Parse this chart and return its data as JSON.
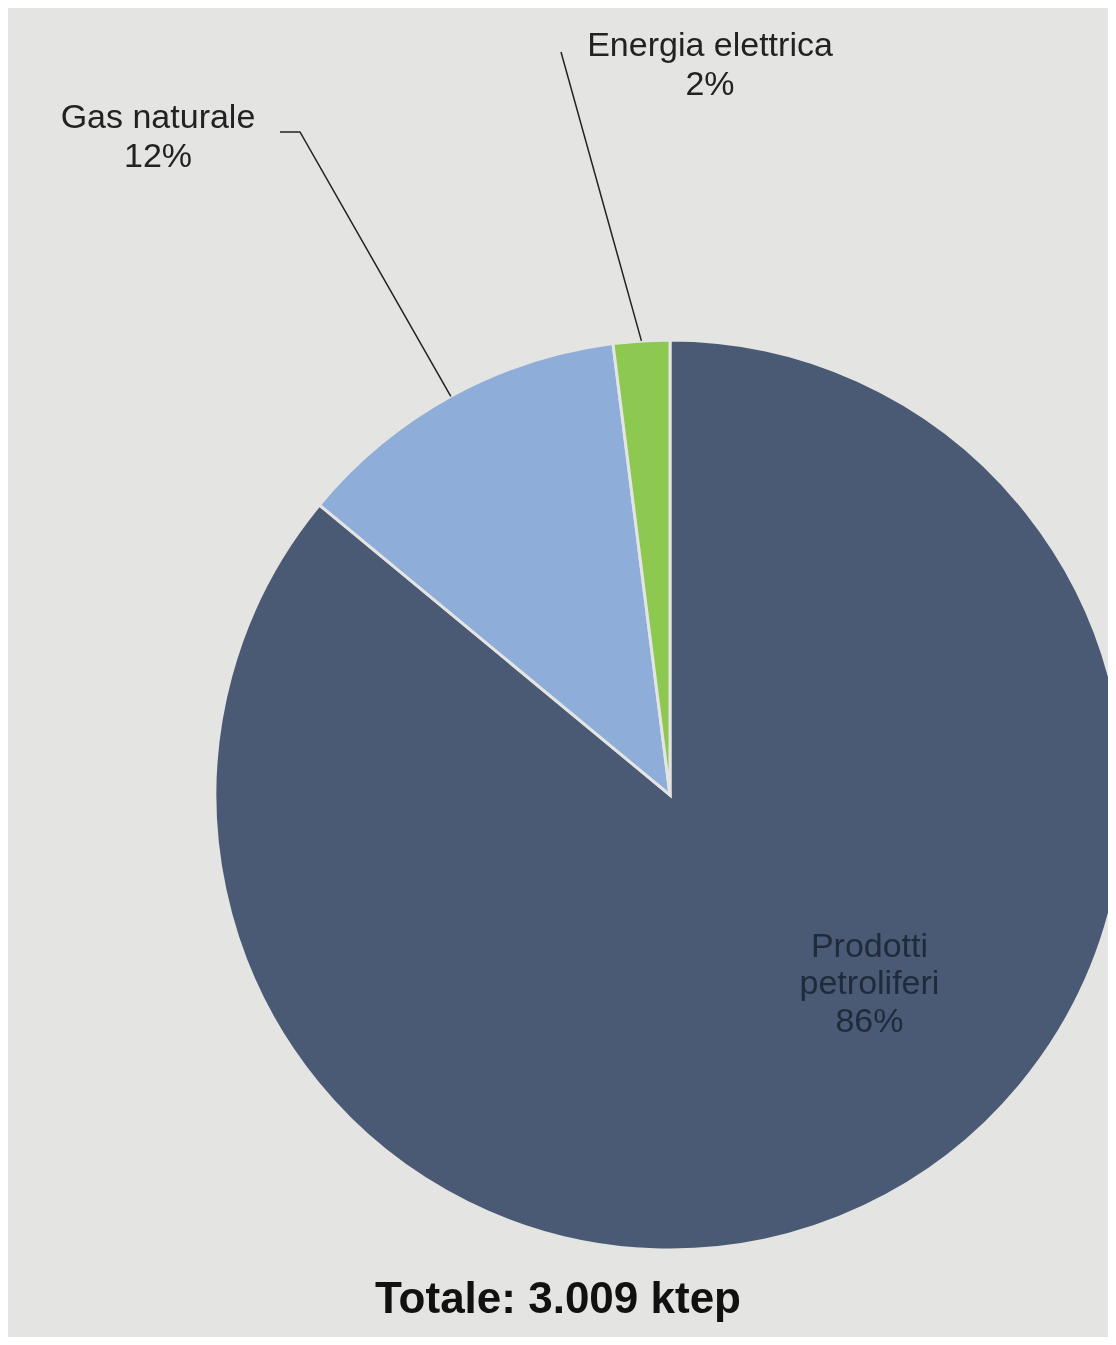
{
  "chart_data": {
    "type": "pie",
    "categories": [
      "Prodotti petroliferi",
      "Gas naturale",
      "Energia elettrica"
    ],
    "values": [
      86,
      12,
      2
    ],
    "value_labels": [
      "86%",
      "12%",
      "2%"
    ],
    "colors": [
      "#4a5a75",
      "#8eadd8",
      "#8dc850"
    ],
    "annotations": [
      "Totale: 3.009 ktep"
    ]
  }
}
